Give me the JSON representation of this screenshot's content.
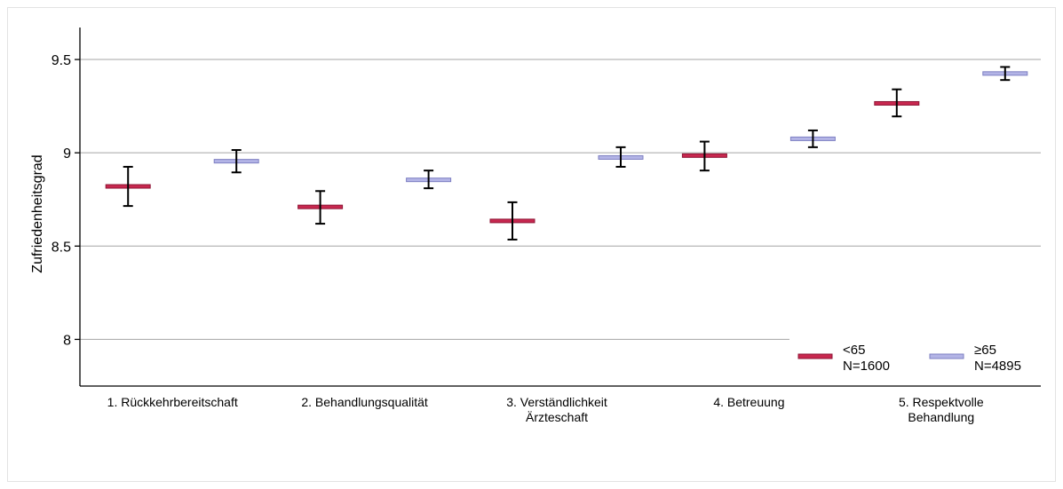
{
  "chart_data": {
    "type": "error-bar",
    "title": "",
    "xlabel": "",
    "ylabel": "Zufriedenheitsgrad",
    "ylim": [
      7.75,
      9.7
    ],
    "yticks": [
      {
        "value": 8,
        "label": "8"
      },
      {
        "value": 8.5,
        "label": "8.5"
      },
      {
        "value": 9,
        "label": "9"
      },
      {
        "value": 9.5,
        "label": "9.5"
      }
    ],
    "grid": true,
    "categories": [
      {
        "lines": [
          "1. Rückkehrbereitschaft"
        ]
      },
      {
        "lines": [
          "2. Behandlungsqualität"
        ]
      },
      {
        "lines": [
          "3. Verständlichkeit",
          "Ärzteschaft"
        ]
      },
      {
        "lines": [
          "4. Betreuung"
        ]
      },
      {
        "lines": [
          "5. Respektvolle",
          "Behandlung"
        ]
      }
    ],
    "series": [
      {
        "label": "<65",
        "n_label": "N=1600",
        "color": "#c8284f",
        "edge": "#8e1535",
        "mean": [
          8.82,
          8.71,
          8.635,
          8.985,
          9.265
        ],
        "lower": [
          8.715,
          8.62,
          8.535,
          8.905,
          9.195
        ],
        "upper": [
          8.925,
          8.795,
          8.735,
          9.06,
          9.34
        ]
      },
      {
        "label": "≥65",
        "n_label": "N=4895",
        "color": "#b3b4e6",
        "edge": "#7d7fc2",
        "mean": [
          8.955,
          8.855,
          8.975,
          9.075,
          9.425
        ],
        "lower": [
          8.895,
          8.81,
          8.925,
          9.03,
          9.39
        ],
        "upper": [
          9.015,
          8.905,
          9.03,
          9.12,
          9.46
        ]
      }
    ],
    "legend": {
      "position": "bottom-right"
    }
  }
}
